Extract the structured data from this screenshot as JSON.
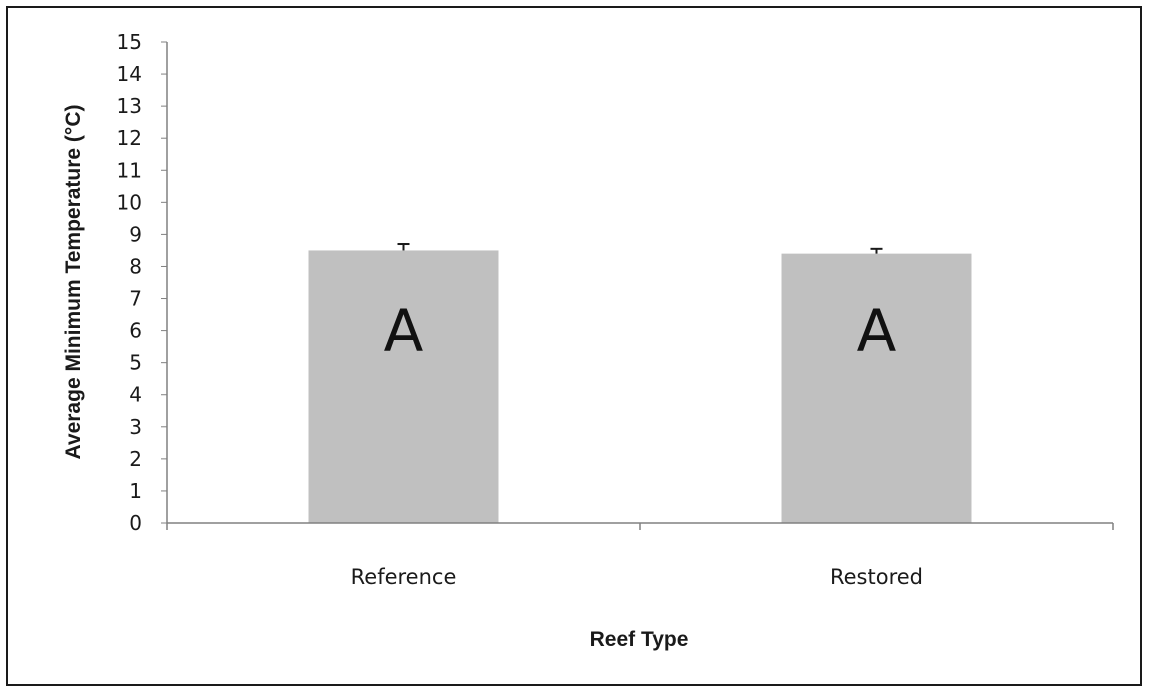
{
  "chart_data": {
    "type": "bar",
    "categories": [
      "Reference",
      "Restored"
    ],
    "values": [
      8.5,
      8.4
    ],
    "error_bars": [
      0.2,
      0.15
    ],
    "bar_annotations": [
      "A",
      "A"
    ],
    "xlabel": "Reef Type",
    "ylabel": "Average Minimum  Temperature (°C)",
    "ylim": [
      0,
      15
    ],
    "yticks": [
      "0",
      "1",
      "2",
      "3",
      "4",
      "5",
      "6",
      "7",
      "8",
      "9",
      "10",
      "11",
      "12",
      "13",
      "14",
      "15"
    ],
    "grid": false,
    "legend": "none",
    "bar_color": "#c0c0c0",
    "axis_color": "#808080"
  }
}
